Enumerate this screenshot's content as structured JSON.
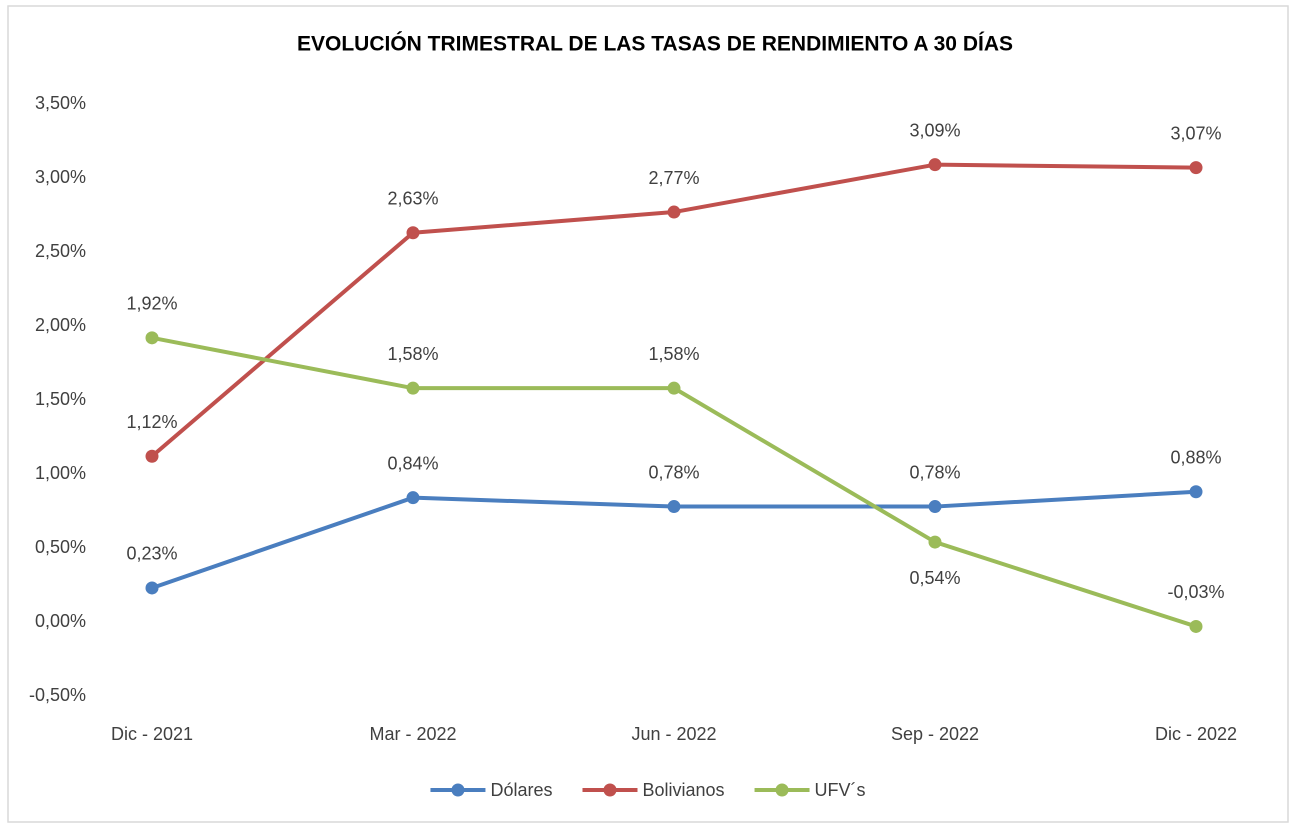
{
  "chart_data": {
    "type": "line",
    "title": "EVOLUCIÓN TRIMESTRAL DE LAS TASAS DE RENDIMIENTO A 30 DÍAS",
    "categories": [
      "Dic - 2021",
      "Mar - 2022",
      "Jun - 2022",
      "Sep - 2022",
      "Dic - 2022"
    ],
    "series": [
      {
        "name": "Dólares",
        "color": "#4a7ebf",
        "values": [
          0.23,
          0.84,
          0.78,
          0.78,
          0.88
        ],
        "value_labels": [
          "0,23%",
          "0,84%",
          "0,78%",
          "0,78%",
          "0,88%"
        ]
      },
      {
        "name": "Bolivianos",
        "color": "#c0504d",
        "values": [
          1.12,
          2.63,
          2.77,
          3.09,
          3.07
        ],
        "value_labels": [
          "1,12%",
          "2,63%",
          "2,77%",
          "3,09%",
          "3,07%"
        ]
      },
      {
        "name": "UFV´s",
        "color": "#9bbb59",
        "values": [
          1.92,
          1.58,
          1.58,
          0.54,
          -0.03
        ],
        "value_labels": [
          "1,92%",
          "1,58%",
          "1,58%",
          "0,54%",
          "-0,03%"
        ]
      }
    ],
    "ylim": [
      -0.5,
      3.5
    ],
    "yticks": [
      {
        "value": -0.5,
        "label": "-0,50%"
      },
      {
        "value": 0,
        "label": "0,00%"
      },
      {
        "value": 0.5,
        "label": "0,50%"
      },
      {
        "value": 1,
        "label": "1,00%"
      },
      {
        "value": 1.5,
        "label": "1,50%"
      },
      {
        "value": 2,
        "label": "2,00%"
      },
      {
        "value": 2.5,
        "label": "2,50%"
      },
      {
        "value": 3,
        "label": "3,00%"
      },
      {
        "value": 3.5,
        "label": "3,50%"
      }
    ],
    "grid": false,
    "legend": "bottom"
  }
}
